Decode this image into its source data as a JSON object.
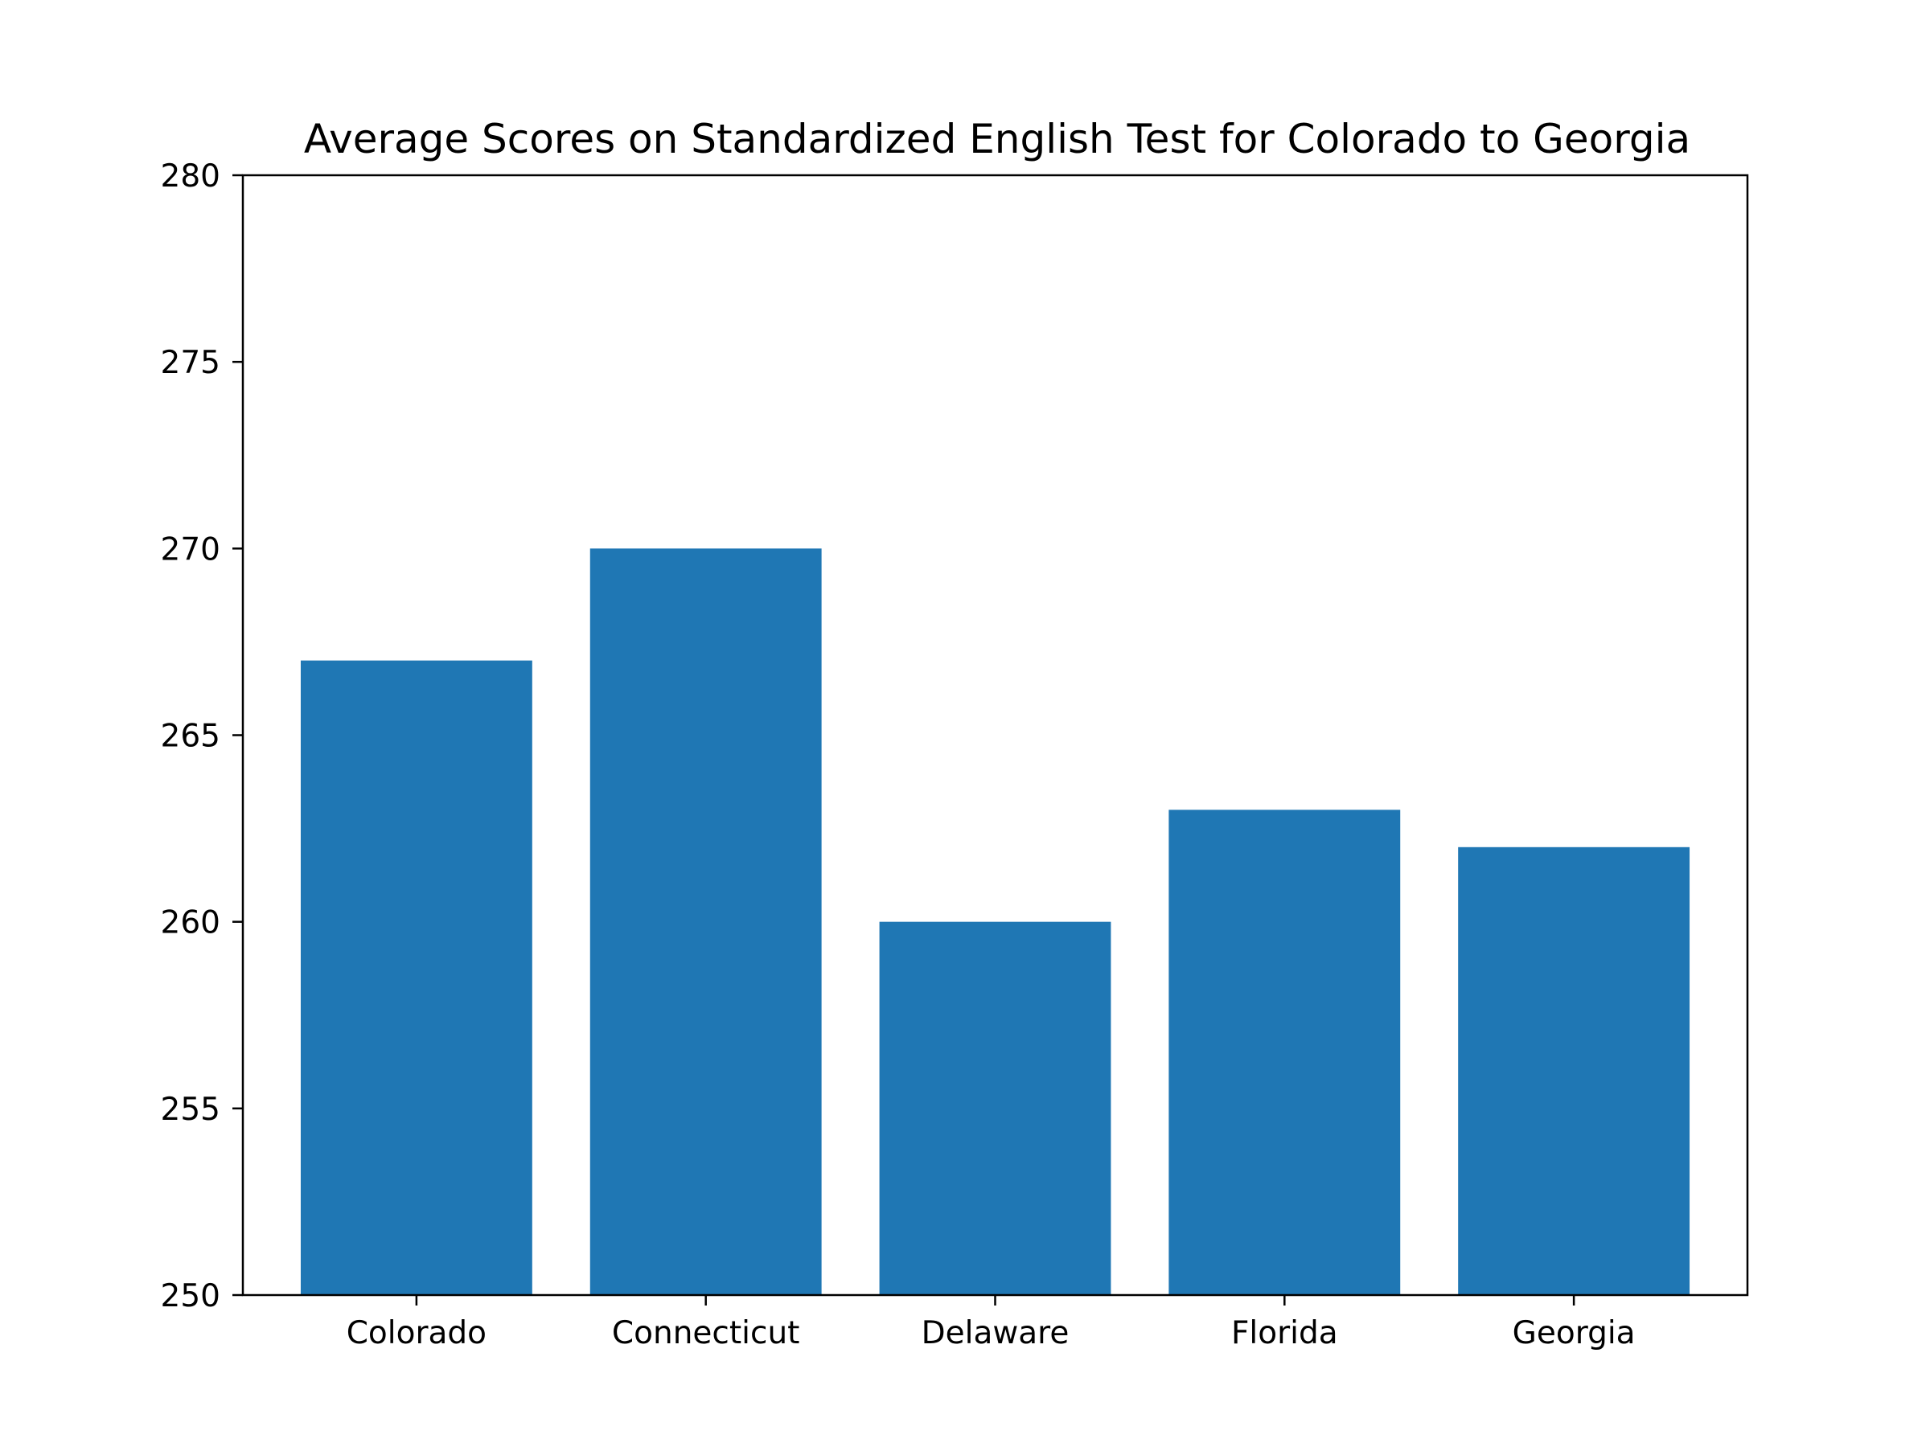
{
  "chart_data": {
    "type": "bar",
    "title": "Average Scores on Standardized English Test for Colorado to Georgia",
    "xlabel": "",
    "ylabel": "",
    "categories": [
      "Colorado",
      "Connecticut",
      "Delaware",
      "Florida",
      "Georgia"
    ],
    "values": [
      267,
      270,
      260,
      263,
      262
    ],
    "ylim": [
      250,
      280
    ],
    "yticks": [
      250,
      255,
      260,
      265,
      270,
      275,
      280
    ],
    "bar_color": "#1f77b4",
    "grid": false,
    "legend": "none"
  }
}
